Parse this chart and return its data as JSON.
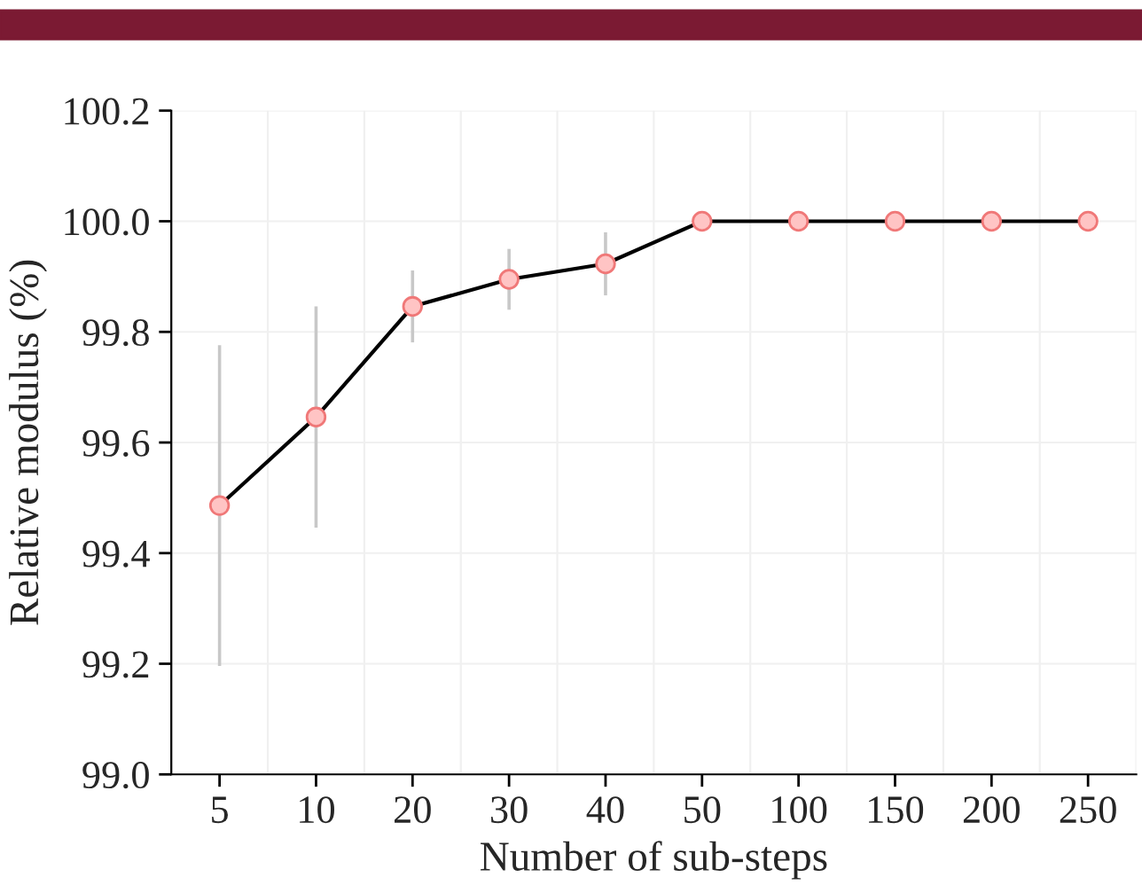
{
  "chart_data": {
    "type": "line",
    "xlabel": "Number of sub-steps",
    "ylabel": "Relative modulus (%)",
    "categories": [
      "5",
      "10",
      "20",
      "30",
      "40",
      "50",
      "100",
      "150",
      "200",
      "250"
    ],
    "series": [
      {
        "color": "#000000",
        "values": [
          99.486,
          99.646,
          99.846,
          99.895,
          99.923,
          100.0,
          100.0,
          100.0,
          100.0,
          100.0
        ],
        "errors": [
          0.29,
          0.2,
          0.065,
          0.055,
          0.057,
          null,
          null,
          null,
          null,
          null
        ]
      }
    ],
    "ylim": [
      99.0,
      100.2
    ],
    "yticks": [
      {
        "value": 99.0,
        "label": "99.0"
      },
      {
        "value": 99.2,
        "label": "99.2"
      },
      {
        "value": 99.4,
        "label": "99.4"
      },
      {
        "value": 99.6,
        "label": "99.6"
      },
      {
        "value": 99.8,
        "label": "99.8"
      },
      {
        "value": 100.0,
        "label": "100.0"
      },
      {
        "value": 100.2,
        "label": "100.2"
      }
    ],
    "grid": true,
    "marker": "circle",
    "line_style": "solid",
    "legend": false
  }
}
